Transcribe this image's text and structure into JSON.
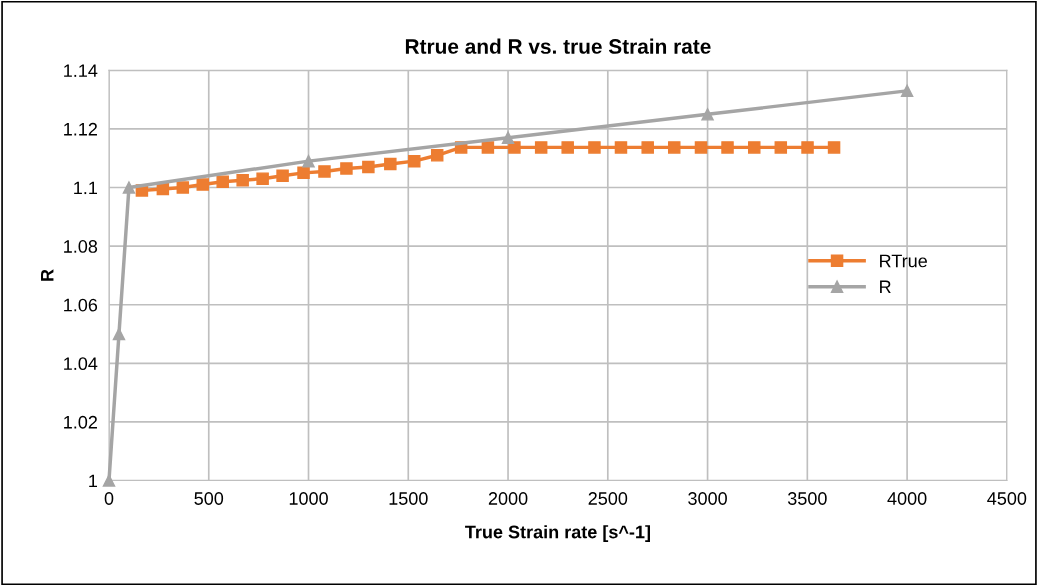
{
  "chart_data": {
    "type": "line",
    "title": "Rtrue and R vs. true Strain rate",
    "xlabel": "True Strain rate [s^-1]",
    "ylabel": "R",
    "series": [
      {
        "name": "RTrue",
        "color": "#ed7d31",
        "marker": "square",
        "x": [
          165,
          270,
          370,
          470,
          570,
          670,
          770,
          870,
          975,
          1080,
          1190,
          1300,
          1410,
          1530,
          1645,
          1765,
          1899,
          2032,
          2166,
          2299,
          2433,
          2566,
          2700,
          2833,
          2967,
          3100,
          3234,
          3367,
          3501,
          3634
        ],
        "values": [
          1.099,
          1.0995,
          1.1,
          1.101,
          1.102,
          1.1025,
          1.103,
          1.104,
          1.105,
          1.1055,
          1.1065,
          1.107,
          1.108,
          1.109,
          1.111,
          1.1137,
          1.1137,
          1.1137,
          1.1137,
          1.1137,
          1.1137,
          1.1137,
          1.1137,
          1.1137,
          1.1137,
          1.1137,
          1.1137,
          1.1137,
          1.1137,
          1.1137
        ]
      },
      {
        "name": "R",
        "color": "#a5a5a5",
        "marker": "triangle",
        "x": [
          0,
          50,
          100,
          1000,
          2000,
          3000,
          4000
        ],
        "values": [
          1.0,
          1.05,
          1.1,
          1.109,
          1.117,
          1.125,
          1.133
        ]
      }
    ],
    "xlim": [
      0,
      4500
    ],
    "xticks": [
      0,
      500,
      1000,
      1500,
      2000,
      2500,
      3000,
      3500,
      4000,
      4500
    ],
    "ylim": [
      1,
      1.14
    ],
    "yticks": [
      1,
      1.02,
      1.04,
      1.06,
      1.08,
      1.1,
      1.12,
      1.14
    ],
    "grid": true,
    "legend": "right",
    "line_style": "solid"
  }
}
